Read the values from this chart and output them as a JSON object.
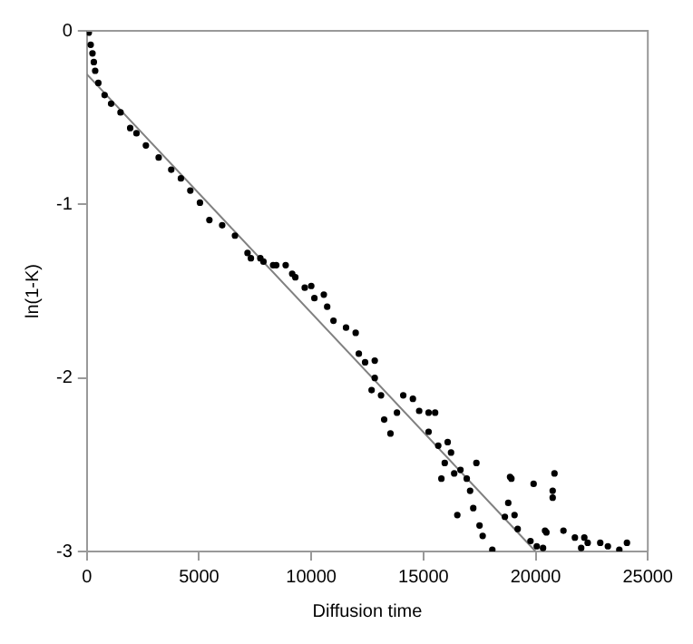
{
  "chart_data": {
    "type": "scatter",
    "xlabel": "Diffusion time",
    "ylabel": "ln(1-K)",
    "xlim": [
      0,
      25000
    ],
    "ylim": [
      -3,
      0
    ],
    "xticks": [
      0,
      5000,
      10000,
      15000,
      20000,
      25000
    ],
    "yticks": [
      -3,
      -2,
      -1,
      0
    ],
    "grid": false,
    "legend": false,
    "marker": "circle",
    "series": [
      {
        "color": "#000000",
        "x": [
          85,
          170,
          250,
          310,
          370,
          510,
          790,
          1080,
          1500,
          1930,
          2210,
          2630,
          3200,
          3760,
          4190,
          4610,
          5040,
          5460,
          6030,
          6600,
          7160,
          7730,
          8300,
          9150,
          10000,
          10560,
          7310,
          7870,
          8440,
          8860,
          9290,
          9710,
          10140,
          10710,
          10990,
          11550,
          11980,
          12120,
          12400,
          12830,
          12830,
          12690,
          13110,
          13250,
          13530,
          13820,
          14100,
          14530,
          14810,
          15230,
          15520,
          15230,
          15660,
          16080,
          16230,
          15950,
          15800,
          16370,
          16650,
          16930,
          17360,
          17080,
          16510,
          17220,
          17500,
          17640,
          18070,
          18630,
          18780,
          18920,
          19060,
          19200,
          19770,
          19910,
          20050,
          20330,
          20760,
          20480,
          20840,
          18860,
          20760,
          21240,
          21750,
          22170,
          22320,
          22880,
          23220,
          23730,
          24070,
          20420,
          22030
        ],
        "values": [
          -0.01,
          -0.08,
          -0.13,
          -0.18,
          -0.23,
          -0.3,
          -0.37,
          -0.42,
          -0.47,
          -0.56,
          -0.59,
          -0.66,
          -0.73,
          -0.8,
          -0.85,
          -0.92,
          -0.99,
          -1.09,
          -1.12,
          -1.18,
          -1.28,
          -1.31,
          -1.35,
          -1.4,
          -1.47,
          -1.52,
          -1.31,
          -1.33,
          -1.35,
          -1.35,
          -1.42,
          -1.48,
          -1.54,
          -1.59,
          -1.67,
          -1.71,
          -1.74,
          -1.86,
          -1.91,
          -1.9,
          -2,
          -2.07,
          -2.1,
          -2.24,
          -2.32,
          -2.2,
          -2.1,
          -2.12,
          -2.19,
          -2.2,
          -2.2,
          -2.31,
          -2.39,
          -2.37,
          -2.43,
          -2.49,
          -2.58,
          -2.55,
          -2.53,
          -2.58,
          -2.49,
          -2.65,
          -2.79,
          -2.75,
          -2.85,
          -2.91,
          -2.99,
          -2.8,
          -2.72,
          -2.58,
          -2.79,
          -2.87,
          -2.94,
          -2.61,
          -2.97,
          -2.98,
          -2.65,
          -2.89,
          -2.55,
          -2.57,
          -2.69,
          -2.88,
          -2.92,
          -2.92,
          -2.95,
          -2.95,
          -2.97,
          -2.99,
          -2.95,
          -2.88,
          -2.98
        ]
      },
      {
        "type": "line",
        "color": "#808080",
        "marker": "none",
        "x": [
          0,
          20000
        ],
        "values": [
          -0.25,
          -3
        ]
      }
    ]
  }
}
